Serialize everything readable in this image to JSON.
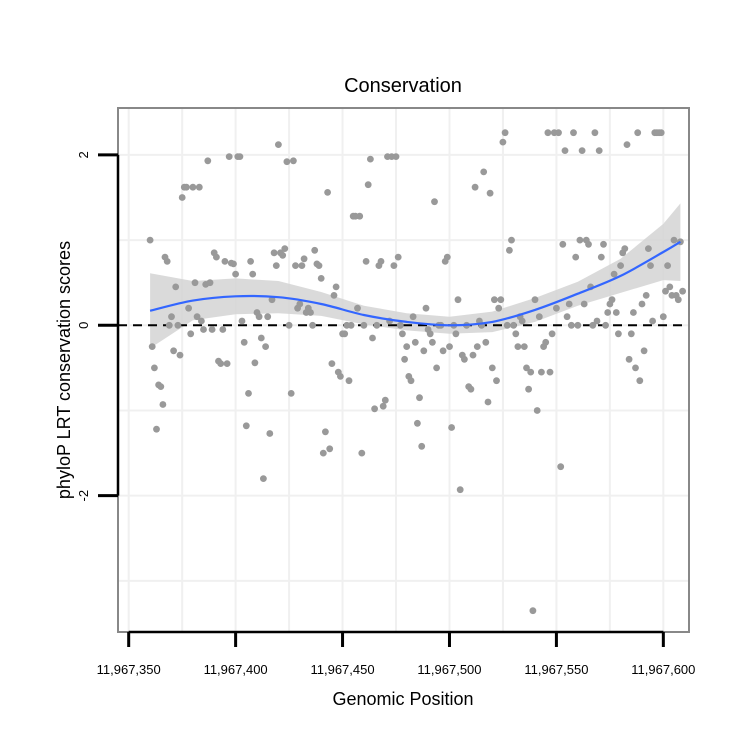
{
  "chart_data": {
    "type": "scatter",
    "title": "Conservation",
    "xlabel": "Genomic Position",
    "ylabel": "phyloP LRT conservation scores",
    "xlim": [
      11967345,
      11967612
    ],
    "ylim": [
      -3.6,
      2.55
    ],
    "x_ticks": [
      {
        "value": 11967350,
        "label": "11,967,350"
      },
      {
        "value": 11967400,
        "label": "11,967,400"
      },
      {
        "value": 11967450,
        "label": "11,967,450"
      },
      {
        "value": 11967500,
        "label": "11,967,500"
      },
      {
        "value": 11967550,
        "label": "11,967,550"
      },
      {
        "value": 11967600,
        "label": "11,967,600"
      }
    ],
    "y_ticks": [
      {
        "value": 2,
        "label": "2"
      },
      {
        "value": 0,
        "label": "0"
      },
      {
        "value": -2,
        "label": "-2"
      }
    ],
    "grid": true,
    "reference_line": {
      "y": 0,
      "style": "dashed",
      "color": "#000000"
    },
    "colors": {
      "points": "#999999",
      "smooth_line": "#3366ff",
      "ribbon": "#d3d3d3",
      "panel_border": "#888888",
      "grid": "#f0f0f0"
    },
    "smooth": {
      "x": [
        11967360,
        11967380,
        11967400,
        11967420,
        11967440,
        11967460,
        11967480,
        11967500,
        11967520,
        11967540,
        11967560,
        11967580,
        11967600,
        11967608
      ],
      "y": [
        0.17,
        0.29,
        0.34,
        0.33,
        0.25,
        0.12,
        0.04,
        0.0,
        0.04,
        0.18,
        0.37,
        0.58,
        0.86,
        0.98
      ],
      "lower": [
        -0.27,
        0.06,
        0.13,
        0.14,
        0.11,
        0.01,
        -0.06,
        -0.1,
        -0.08,
        0.04,
        0.23,
        0.38,
        0.53,
        0.52
      ],
      "upper": [
        0.61,
        0.52,
        0.55,
        0.52,
        0.39,
        0.23,
        0.14,
        0.1,
        0.16,
        0.32,
        0.51,
        0.78,
        1.19,
        1.43
      ]
    },
    "points": [
      [
        11967360,
        1.0
      ],
      [
        11967361,
        -0.25
      ],
      [
        11967362,
        -0.5
      ],
      [
        11967363,
        -1.22
      ],
      [
        11967364,
        -0.7
      ],
      [
        11967365,
        -0.72
      ],
      [
        11967366,
        -0.93
      ],
      [
        11967367,
        0.8
      ],
      [
        11967368,
        0.75
      ],
      [
        11967369,
        0.0
      ],
      [
        11967370,
        0.1
      ],
      [
        11967371,
        -0.3
      ],
      [
        11967372,
        0.45
      ],
      [
        11967373,
        0.0
      ],
      [
        11967374,
        -0.35
      ],
      [
        11967375,
        1.5
      ],
      [
        11967376,
        1.62
      ],
      [
        11967377,
        1.62
      ],
      [
        11967378,
        0.2
      ],
      [
        11967379,
        -0.1
      ],
      [
        11967380,
        1.62
      ],
      [
        11967381,
        0.5
      ],
      [
        11967382,
        0.1
      ],
      [
        11967383,
        1.62
      ],
      [
        11967384,
        0.05
      ],
      [
        11967385,
        -0.05
      ],
      [
        11967386,
        0.48
      ],
      [
        11967387,
        1.93
      ],
      [
        11967388,
        0.5
      ],
      [
        11967389,
        -0.05
      ],
      [
        11967390,
        0.85
      ],
      [
        11967391,
        0.8
      ],
      [
        11967392,
        -0.42
      ],
      [
        11967393,
        -0.45
      ],
      [
        11967394,
        -0.05
      ],
      [
        11967395,
        0.75
      ],
      [
        11967396,
        -0.45
      ],
      [
        11967397,
        1.98
      ],
      [
        11967398,
        0.73
      ],
      [
        11967399,
        0.72
      ],
      [
        11967400,
        0.6
      ],
      [
        11967401,
        1.98
      ],
      [
        11967402,
        1.98
      ],
      [
        11967403,
        0.05
      ],
      [
        11967404,
        -0.2
      ],
      [
        11967405,
        -1.18
      ],
      [
        11967406,
        -0.8
      ],
      [
        11967407,
        0.75
      ],
      [
        11967408,
        0.6
      ],
      [
        11967409,
        -0.44
      ],
      [
        11967410,
        0.15
      ],
      [
        11967411,
        0.1
      ],
      [
        11967412,
        -0.15
      ],
      [
        11967413,
        -1.8
      ],
      [
        11967414,
        -0.25
      ],
      [
        11967415,
        0.1
      ],
      [
        11967416,
        -1.27
      ],
      [
        11967417,
        0.3
      ],
      [
        11967418,
        0.85
      ],
      [
        11967419,
        0.7
      ],
      [
        11967420,
        2.12
      ],
      [
        11967421,
        0.85
      ],
      [
        11967422,
        0.82
      ],
      [
        11967423,
        0.9
      ],
      [
        11967424,
        1.92
      ],
      [
        11967425,
        0.0
      ],
      [
        11967426,
        -0.8
      ],
      [
        11967427,
        1.93
      ],
      [
        11967428,
        0.7
      ],
      [
        11967429,
        0.2
      ],
      [
        11967430,
        0.25
      ],
      [
        11967431,
        0.7
      ],
      [
        11967432,
        0.78
      ],
      [
        11967433,
        0.15
      ],
      [
        11967434,
        0.2
      ],
      [
        11967435,
        0.15
      ],
      [
        11967436,
        0.0
      ],
      [
        11967437,
        0.88
      ],
      [
        11967438,
        0.72
      ],
      [
        11967439,
        0.7
      ],
      [
        11967440,
        0.55
      ],
      [
        11967441,
        -1.5
      ],
      [
        11967442,
        -1.25
      ],
      [
        11967443,
        1.56
      ],
      [
        11967444,
        -1.45
      ],
      [
        11967445,
        -0.45
      ],
      [
        11967446,
        0.35
      ],
      [
        11967447,
        0.45
      ],
      [
        11967448,
        -0.55
      ],
      [
        11967449,
        -0.6
      ],
      [
        11967450,
        -0.1
      ],
      [
        11967451,
        -0.1
      ],
      [
        11967452,
        0.0
      ],
      [
        11967453,
        -0.65
      ],
      [
        11967454,
        0.0
      ],
      [
        11967455,
        1.28
      ],
      [
        11967456,
        1.28
      ],
      [
        11967457,
        0.2
      ],
      [
        11967458,
        1.28
      ],
      [
        11967459,
        -1.5
      ],
      [
        11967460,
        0.0
      ],
      [
        11967461,
        0.75
      ],
      [
        11967462,
        1.65
      ],
      [
        11967463,
        1.95
      ],
      [
        11967464,
        -0.15
      ],
      [
        11967465,
        -0.98
      ],
      [
        11967466,
        0.0
      ],
      [
        11967467,
        0.7
      ],
      [
        11967468,
        0.75
      ],
      [
        11967469,
        -0.95
      ],
      [
        11967470,
        -0.88
      ],
      [
        11967471,
        1.98
      ],
      [
        11967472,
        0.05
      ],
      [
        11967473,
        1.98
      ],
      [
        11967474,
        0.7
      ],
      [
        11967475,
        1.98
      ],
      [
        11967476,
        0.8
      ],
      [
        11967477,
        0.0
      ],
      [
        11967478,
        -0.1
      ],
      [
        11967479,
        -0.4
      ],
      [
        11967480,
        -0.25
      ],
      [
        11967481,
        -0.6
      ],
      [
        11967482,
        -0.65
      ],
      [
        11967483,
        0.1
      ],
      [
        11967484,
        -0.2
      ],
      [
        11967485,
        -1.15
      ],
      [
        11967486,
        -0.85
      ],
      [
        11967487,
        -1.42
      ],
      [
        11967488,
        -0.3
      ],
      [
        11967489,
        0.2
      ],
      [
        11967490,
        -0.05
      ],
      [
        11967491,
        -0.1
      ],
      [
        11967492,
        -0.2
      ],
      [
        11967493,
        1.45
      ],
      [
        11967494,
        -0.5
      ],
      [
        11967495,
        0.0
      ],
      [
        11967496,
        0.0
      ],
      [
        11967497,
        -0.3
      ],
      [
        11967498,
        0.75
      ],
      [
        11967499,
        0.8
      ],
      [
        11967500,
        -0.25
      ],
      [
        11967501,
        -1.2
      ],
      [
        11967502,
        0.0
      ],
      [
        11967503,
        -0.1
      ],
      [
        11967504,
        0.3
      ],
      [
        11967505,
        -1.93
      ],
      [
        11967506,
        -0.35
      ],
      [
        11967507,
        -0.4
      ],
      [
        11967508,
        0.0
      ],
      [
        11967509,
        -0.72
      ],
      [
        11967510,
        -0.75
      ],
      [
        11967511,
        -0.35
      ],
      [
        11967512,
        1.62
      ],
      [
        11967513,
        -0.25
      ],
      [
        11967514,
        0.05
      ],
      [
        11967515,
        0.0
      ],
      [
        11967516,
        1.8
      ],
      [
        11967517,
        -0.2
      ],
      [
        11967518,
        -0.9
      ],
      [
        11967519,
        1.55
      ],
      [
        11967520,
        -0.5
      ],
      [
        11967521,
        0.3
      ],
      [
        11967522,
        -0.65
      ],
      [
        11967523,
        0.2
      ],
      [
        11967524,
        0.3
      ],
      [
        11967525,
        2.15
      ],
      [
        11967526,
        2.26
      ],
      [
        11967527,
        0.0
      ],
      [
        11967528,
        0.88
      ],
      [
        11967529,
        1.0
      ],
      [
        11967530,
        0.0
      ],
      [
        11967531,
        -0.1
      ],
      [
        11967532,
        -0.25
      ],
      [
        11967533,
        0.1
      ],
      [
        11967534,
        0.05
      ],
      [
        11967535,
        -0.25
      ],
      [
        11967536,
        -0.5
      ],
      [
        11967537,
        -0.75
      ],
      [
        11967538,
        -0.55
      ],
      [
        11967539,
        -3.35
      ],
      [
        11967540,
        0.3
      ],
      [
        11967541,
        -1.0
      ],
      [
        11967542,
        0.1
      ],
      [
        11967543,
        -0.55
      ],
      [
        11967544,
        -0.25
      ],
      [
        11967545,
        -0.2
      ],
      [
        11967546,
        2.26
      ],
      [
        11967547,
        -0.55
      ],
      [
        11967548,
        -0.1
      ],
      [
        11967549,
        2.26
      ],
      [
        11967550,
        0.2
      ],
      [
        11967551,
        2.26
      ],
      [
        11967552,
        -1.66
      ],
      [
        11967553,
        0.95
      ],
      [
        11967554,
        2.05
      ],
      [
        11967555,
        0.1
      ],
      [
        11967556,
        0.25
      ],
      [
        11967557,
        0.0
      ],
      [
        11967558,
        2.26
      ],
      [
        11967559,
        0.8
      ],
      [
        11967560,
        0.0
      ],
      [
        11967561,
        1.0
      ],
      [
        11967562,
        2.05
      ],
      [
        11967563,
        0.25
      ],
      [
        11967564,
        1.0
      ],
      [
        11967565,
        0.95
      ],
      [
        11967566,
        0.45
      ],
      [
        11967567,
        0.0
      ],
      [
        11967568,
        2.26
      ],
      [
        11967569,
        0.05
      ],
      [
        11967570,
        2.05
      ],
      [
        11967571,
        0.8
      ],
      [
        11967572,
        0.95
      ],
      [
        11967573,
        0.0
      ],
      [
        11967574,
        0.15
      ],
      [
        11967575,
        0.25
      ],
      [
        11967576,
        0.3
      ],
      [
        11967577,
        0.6
      ],
      [
        11967578,
        0.15
      ],
      [
        11967579,
        -0.1
      ],
      [
        11967580,
        0.7
      ],
      [
        11967581,
        0.85
      ],
      [
        11967582,
        0.9
      ],
      [
        11967583,
        2.12
      ],
      [
        11967584,
        -0.4
      ],
      [
        11967585,
        -0.1
      ],
      [
        11967586,
        0.15
      ],
      [
        11967587,
        -0.5
      ],
      [
        11967588,
        2.26
      ],
      [
        11967589,
        -0.65
      ],
      [
        11967590,
        0.25
      ],
      [
        11967591,
        -0.3
      ],
      [
        11967592,
        0.35
      ],
      [
        11967593,
        0.9
      ],
      [
        11967594,
        0.7
      ],
      [
        11967595,
        0.05
      ],
      [
        11967596,
        2.26
      ],
      [
        11967597,
        2.26
      ],
      [
        11967598,
        2.26
      ],
      [
        11967599,
        2.26
      ],
      [
        11967600,
        0.1
      ],
      [
        11967601,
        0.4
      ],
      [
        11967602,
        0.7
      ],
      [
        11967603,
        0.45
      ],
      [
        11967604,
        0.35
      ],
      [
        11967605,
        1.0
      ],
      [
        11967606,
        0.35
      ],
      [
        11967607,
        0.3
      ],
      [
        11967608,
        0.98
      ],
      [
        11967609,
        0.4
      ]
    ]
  }
}
